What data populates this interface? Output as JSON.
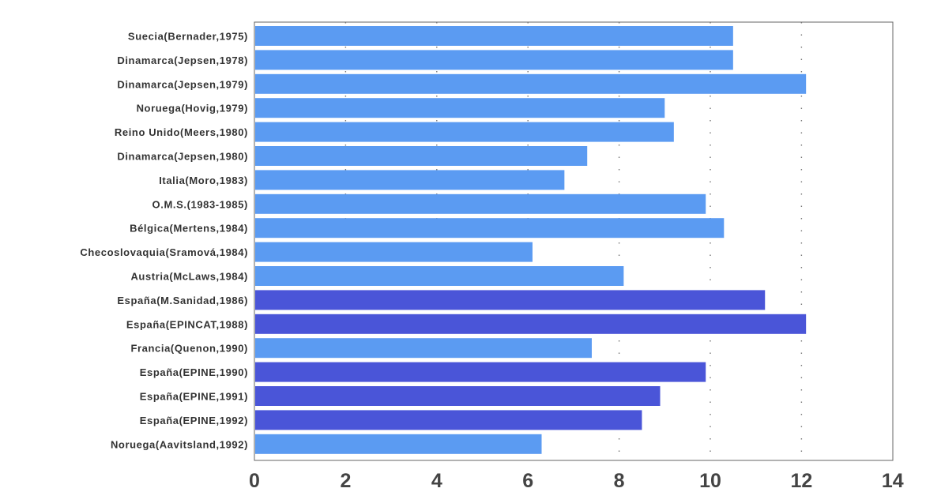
{
  "chart_data": {
    "type": "bar",
    "orientation": "horizontal",
    "title": "",
    "xlabel": "",
    "ylabel": "",
    "xlim": [
      0,
      14
    ],
    "xticks": [
      "0",
      "2",
      "4",
      "6",
      "8",
      "10",
      "12",
      "14"
    ],
    "grid": "vertical dotted lines",
    "legend": "none",
    "categories": [
      "Suecia(Bernader,1975)",
      "Dinamarca(Jepsen,1978)",
      "Dinamarca(Jepsen,1979)",
      "Noruega(Hovig,1979)",
      "Reino Unido(Meers,1980)",
      "Dinamarca(Jepsen,1980)",
      "Italia(Moro,1983)",
      "O.M.S.(1983-1985)",
      "Bélgica(Mertens,1984)",
      "Checoslovaquia(Sramová,1984)",
      "Austria(McLaws,1984)",
      "España(M.Sanidad,1986)",
      "España(EPINCAT,1988)",
      "Francia(Quenon,1990)",
      "España(EPINE,1990)",
      "España(EPINE,1991)",
      "España(EPINE,1992)",
      "Noruega(Aavitsland,1992)"
    ],
    "values": [
      10.5,
      10.5,
      12.1,
      9.0,
      9.2,
      7.3,
      6.8,
      9.9,
      10.3,
      6.1,
      8.1,
      11.2,
      12.1,
      7.4,
      9.9,
      8.9,
      8.5,
      6.3
    ],
    "highlight": [
      false,
      false,
      false,
      false,
      false,
      false,
      false,
      false,
      false,
      false,
      false,
      true,
      true,
      false,
      true,
      true,
      true,
      false
    ],
    "colors": {
      "bar": "#5b9bf2",
      "bar_highlight": "#4a55d8",
      "label": "#333333",
      "tick": "#444444",
      "grid": "#777777",
      "frame": "#666666"
    }
  }
}
